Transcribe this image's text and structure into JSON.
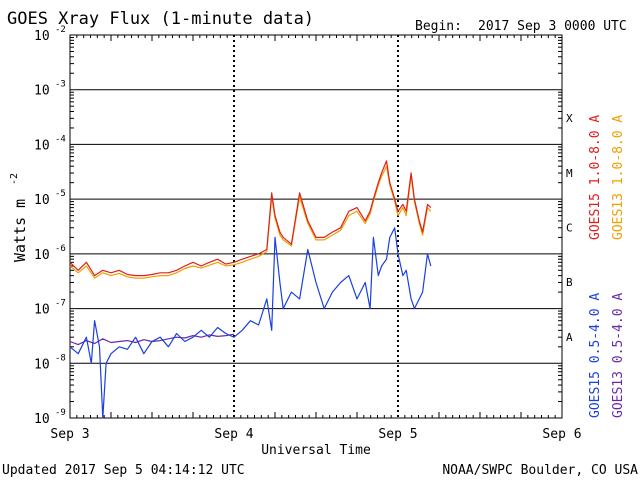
{
  "header": {
    "title": "GOES Xray Flux (1-minute data)",
    "begin_label": "Begin:",
    "begin_value": "2017 Sep 3 0000 UTC"
  },
  "footer": {
    "updated": "Updated 2017 Sep  5 04:14:12 UTC",
    "credit": "NOAA/SWPC Boulder, CO USA"
  },
  "colors": {
    "goes15_long": "#e0201b",
    "goes13_long": "#f0a000",
    "goes15_short": "#1a3fe0",
    "goes13_short": "#6a2aa8"
  },
  "chart_data": {
    "type": "line",
    "xlabel": "Universal Time",
    "ylabel_text": "Watts m",
    "ylabel_sup": "-2",
    "yscale": "log",
    "ylim": [
      1e-09,
      0.01
    ],
    "xlim": [
      0,
      3
    ],
    "grid": true,
    "x_ticks": [
      {
        "value": 0,
        "label": "Sep 3"
      },
      {
        "value": 1,
        "label": "Sep 4"
      },
      {
        "value": 2,
        "label": "Sep 5"
      },
      {
        "value": 3,
        "label": "Sep 6"
      }
    ],
    "y_ticks": [
      {
        "exp": -9,
        "base": "10",
        "sup": "-9"
      },
      {
        "exp": -8,
        "base": "10",
        "sup": "-8"
      },
      {
        "exp": -7,
        "base": "10",
        "sup": "-7"
      },
      {
        "exp": -6,
        "base": "10",
        "sup": "-6"
      },
      {
        "exp": -5,
        "base": "10",
        "sup": "-5"
      },
      {
        "exp": -4,
        "base": "10",
        "sup": "-4"
      },
      {
        "exp": -3,
        "base": "10",
        "sup": "-3"
      },
      {
        "exp": -2,
        "base": "10",
        "sup": "-2"
      }
    ],
    "flare_classes": [
      {
        "label": "A",
        "exp": -7.5
      },
      {
        "label": "B",
        "exp": -6.5
      },
      {
        "label": "C",
        "exp": -5.5
      },
      {
        "label": "M",
        "exp": -4.5
      },
      {
        "label": "X",
        "exp": -3.5
      }
    ],
    "series": [
      {
        "name": "GOES15 1.0-8.0 A",
        "color": "#e0201b",
        "x": [
          0.0,
          0.05,
          0.1,
          0.15,
          0.2,
          0.25,
          0.3,
          0.35,
          0.4,
          0.45,
          0.5,
          0.55,
          0.6,
          0.65,
          0.7,
          0.75,
          0.8,
          0.85,
          0.9,
          0.95,
          1.0,
          1.05,
          1.1,
          1.15,
          1.2,
          1.23,
          1.25,
          1.28,
          1.3,
          1.35,
          1.4,
          1.45,
          1.5,
          1.55,
          1.6,
          1.65,
          1.7,
          1.75,
          1.8,
          1.83,
          1.85,
          1.88,
          1.9,
          1.93,
          1.95,
          1.98,
          2.0,
          2.03,
          2.05,
          2.08,
          2.1,
          2.13,
          2.15,
          2.18,
          2.2
        ],
        "y": [
          7e-07,
          5e-07,
          7e-07,
          4e-07,
          5e-07,
          4.5e-07,
          5e-07,
          4.2e-07,
          4e-07,
          4e-07,
          4.2e-07,
          4.5e-07,
          4.5e-07,
          5e-07,
          6e-07,
          7e-07,
          6e-07,
          7e-07,
          8e-07,
          6.5e-07,
          7e-07,
          8e-07,
          9e-07,
          1e-06,
          1.2e-06,
          1.3e-05,
          5e-06,
          2.5e-06,
          2e-06,
          1.5e-06,
          1.3e-05,
          4e-06,
          2e-06,
          2e-06,
          2.5e-06,
          3e-06,
          6e-06,
          7e-06,
          4e-06,
          6e-06,
          1e-05,
          2e-05,
          3e-05,
          5e-05,
          2e-05,
          1e-05,
          6e-06,
          8e-06,
          6e-06,
          3e-05,
          1e-05,
          4e-06,
          2.5e-06,
          8e-06,
          7e-06
        ]
      },
      {
        "name": "GOES13 1.0-8.0 A",
        "color": "#f0a000",
        "x": [
          0.0,
          0.05,
          0.1,
          0.15,
          0.2,
          0.25,
          0.3,
          0.35,
          0.4,
          0.45,
          0.5,
          0.55,
          0.6,
          0.65,
          0.7,
          0.75,
          0.8,
          0.85,
          0.9,
          0.95,
          1.0,
          1.05,
          1.1,
          1.15,
          1.2,
          1.23,
          1.25,
          1.28,
          1.3,
          1.35,
          1.4,
          1.45,
          1.5,
          1.55,
          1.6,
          1.65,
          1.7,
          1.75,
          1.8,
          1.83,
          1.85,
          1.88,
          1.9,
          1.93,
          1.95,
          1.98,
          2.0,
          2.03,
          2.05,
          2.08,
          2.1,
          2.13,
          2.15,
          2.18,
          2.2
        ],
        "y": [
          6e-07,
          4.5e-07,
          6e-07,
          3.6e-07,
          4.5e-07,
          4e-07,
          4.4e-07,
          3.8e-07,
          3.6e-07,
          3.6e-07,
          3.8e-07,
          4e-07,
          4e-07,
          4.5e-07,
          5.4e-07,
          6e-07,
          5.5e-07,
          6.2e-07,
          7e-07,
          6e-07,
          6.3e-07,
          7e-07,
          8e-07,
          9e-07,
          1.1e-06,
          1.1e-05,
          4.5e-06,
          2.2e-06,
          1.8e-06,
          1.4e-06,
          1.1e-05,
          3.6e-06,
          1.8e-06,
          1.8e-06,
          2.2e-06,
          2.7e-06,
          5e-06,
          6e-06,
          3.6e-06,
          5.4e-06,
          9e-06,
          1.8e-05,
          2.6e-05,
          4e-05,
          1.8e-05,
          9e-06,
          5e-06,
          7e-06,
          5e-06,
          2.6e-05,
          9e-06,
          3.6e-06,
          2.2e-06,
          7e-06,
          6e-06
        ]
      },
      {
        "name": "GOES15 0.5-4.0 A",
        "color": "#1a3fe0",
        "x": [
          0.0,
          0.05,
          0.1,
          0.13,
          0.15,
          0.18,
          0.2,
          0.22,
          0.25,
          0.3,
          0.35,
          0.4,
          0.45,
          0.5,
          0.55,
          0.6,
          0.65,
          0.7,
          0.75,
          0.8,
          0.85,
          0.9,
          0.95,
          1.0,
          1.05,
          1.1,
          1.15,
          1.2,
          1.23,
          1.25,
          1.28,
          1.3,
          1.35,
          1.4,
          1.45,
          1.5,
          1.55,
          1.6,
          1.65,
          1.7,
          1.75,
          1.8,
          1.83,
          1.85,
          1.88,
          1.9,
          1.93,
          1.95,
          1.98,
          2.0,
          2.03,
          2.05,
          2.08,
          2.1,
          2.13,
          2.15,
          2.18,
          2.2
        ],
        "y": [
          2e-08,
          1.5e-08,
          3e-08,
          1e-08,
          6e-08,
          2e-08,
          1e-09,
          1e-08,
          1.5e-08,
          2e-08,
          1.8e-08,
          3e-08,
          1.5e-08,
          2.5e-08,
          3e-08,
          2e-08,
          3.5e-08,
          2.5e-08,
          3e-08,
          4e-08,
          3e-08,
          4.5e-08,
          3.5e-08,
          3e-08,
          4e-08,
          6e-08,
          5e-08,
          1.5e-07,
          4e-08,
          2e-06,
          3e-07,
          1e-07,
          2e-07,
          1.5e-07,
          1.2e-06,
          3e-07,
          1e-07,
          2e-07,
          3e-07,
          4e-07,
          1.5e-07,
          3e-07,
          1e-07,
          2e-06,
          4e-07,
          6e-07,
          8e-07,
          2e-06,
          3e-06,
          1e-06,
          4e-07,
          5e-07,
          1.5e-07,
          1e-07,
          1.5e-07,
          2e-07,
          1e-06,
          6e-07
        ]
      },
      {
        "name": "GOES13 0.5-4.0 A",
        "color": "#6a2aa8",
        "x": [
          0.0,
          0.05,
          0.1,
          0.15,
          0.2,
          0.25,
          0.3,
          0.35,
          0.4,
          0.45,
          0.5,
          0.55,
          0.6,
          0.65,
          0.7,
          0.75,
          0.8,
          0.85,
          0.9,
          0.95,
          1.0
        ],
        "y": [
          2.5e-08,
          2.2e-08,
          2.6e-08,
          2.3e-08,
          2.8e-08,
          2.4e-08,
          2.5e-08,
          2.6e-08,
          2.4e-08,
          2.7e-08,
          2.5e-08,
          2.6e-08,
          2.8e-08,
          3e-08,
          2.9e-08,
          3.2e-08,
          3e-08,
          3.3e-08,
          3.1e-08,
          3.2e-08,
          3.4e-08
        ]
      }
    ]
  }
}
